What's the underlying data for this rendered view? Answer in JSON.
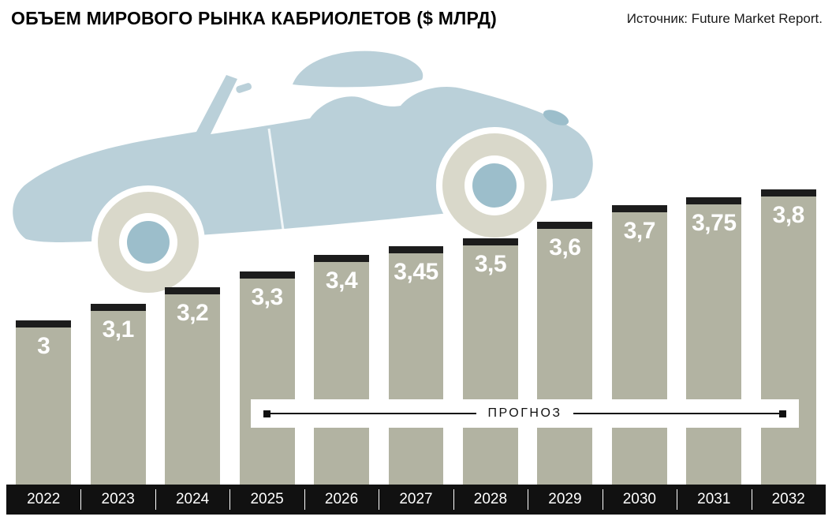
{
  "header": {
    "title": "ОБЪЕМ МИРОВОГО РЫНКА КАБРИОЛЕТОВ ($ МЛРД)",
    "source": "Источник: Future Market Report."
  },
  "forecast_label": "ПРОГНОЗ",
  "chart_data": {
    "type": "bar",
    "title": "ОБЪЕМ МИРОВОГО РЫНКА КАБРИОЛЕТОВ ($ МЛРД)",
    "categories": [
      "2022",
      "2023",
      "2024",
      "2025",
      "2026",
      "2027",
      "2028",
      "2029",
      "2030",
      "2031",
      "2032"
    ],
    "values": [
      3,
      3.1,
      3.2,
      3.3,
      3.4,
      3.45,
      3.5,
      3.6,
      3.7,
      3.75,
      3.8
    ],
    "value_labels": [
      "3",
      "3,1",
      "3,2",
      "3,3",
      "3,4",
      "3,45",
      "3,5",
      "3,6",
      "3,7",
      "3,75",
      "3,8"
    ],
    "xlabel": "",
    "ylabel": "$ млрд",
    "ylim": [
      2,
      4
    ],
    "grid": false,
    "legend": "none",
    "forecast_categories": [
      "2025",
      "2026",
      "2027",
      "2028",
      "2029",
      "2030",
      "2031",
      "2032"
    ]
  },
  "colors": {
    "bar": "#b2b3a2",
    "bar_cap": "#1c1c1c",
    "axis_strip": "#111111",
    "value_text": "#ffffff",
    "car_body": "#bad0d9",
    "car_tire": "#d9d8ca",
    "car_hub": "#9cbecb"
  }
}
